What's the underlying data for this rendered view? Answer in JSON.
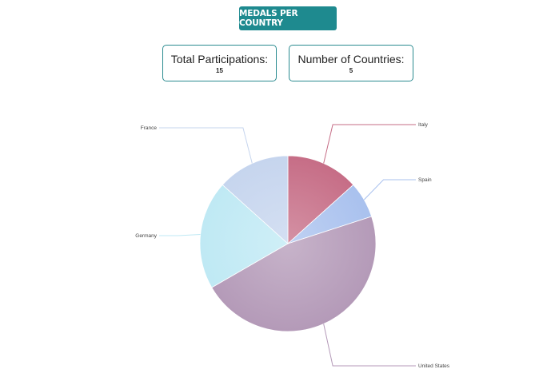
{
  "header": {
    "title": "MEDALS PER COUNTRY"
  },
  "stats": [
    {
      "label": "Total Participations:",
      "value": "15"
    },
    {
      "label": "Number of Countries:",
      "value": "5"
    }
  ],
  "chart_data": {
    "type": "pie",
    "title": "",
    "categories": [
      "Italy",
      "Spain",
      "United States",
      "Germany",
      "France"
    ],
    "values": [
      2,
      1,
      7,
      3,
      2
    ],
    "colors": [
      "#c66d86",
      "#a9c1ee",
      "#b49ab8",
      "#bfe9f4",
      "#c6d5ee"
    ]
  }
}
